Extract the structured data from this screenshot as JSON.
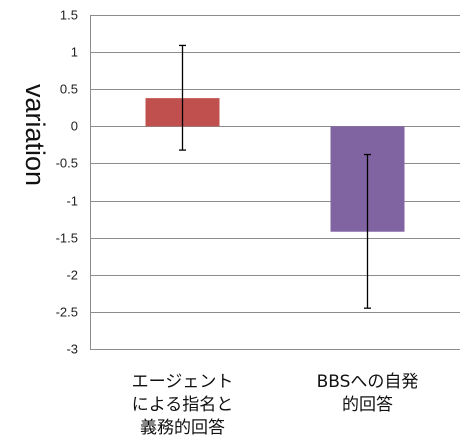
{
  "chart_data": {
    "type": "bar",
    "categories": [
      [
        "エージェント",
        "による指名と",
        "義務的回答"
      ],
      [
        "BBSへの自発",
        "的回答"
      ]
    ],
    "values": [
      0.38,
      -1.42
    ],
    "error_low": [
      -0.32,
      -2.45
    ],
    "error_high": [
      1.09,
      -0.38
    ],
    "colors": [
      "#c0504d",
      "#8064a2"
    ],
    "ylabel": "variation",
    "xlabel": "",
    "title": "",
    "ylim": [
      -3,
      1.5
    ],
    "yticks": [
      1.5,
      1,
      0.5,
      0,
      -0.5,
      -1,
      -1.5,
      -2,
      -2.5,
      -3
    ],
    "ytick_labels": [
      "1.5",
      "1",
      "0.5",
      "0",
      "-0.5",
      "-1",
      "-1.5",
      "-2",
      "-2.5",
      "-3"
    ],
    "grid": true
  }
}
